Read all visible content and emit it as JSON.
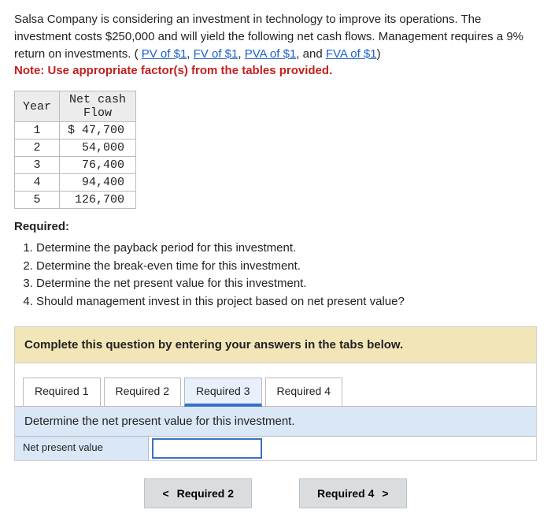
{
  "intro": {
    "line1": "Salsa Company is considering an investment in technology to improve its operations. The investment costs $250,000 and will yield the following net cash flows. Management requires a 9% return on investments. (",
    "link1": "PV of $1",
    "sep": ", ",
    "link2": "FV of $1",
    "link3": "PVA of $1",
    "and": ", and ",
    "link4": "FVA of $1",
    "close": ")",
    "note": "Note: Use appropriate factor(s) from the tables provided."
  },
  "table": {
    "head_year": "Year",
    "head_flow": "Net cash\nFlow",
    "rows": [
      {
        "year": "1",
        "flow": "$ 47,700"
      },
      {
        "year": "2",
        "flow": "54,000"
      },
      {
        "year": "3",
        "flow": "76,400"
      },
      {
        "year": "4",
        "flow": "94,400"
      },
      {
        "year": "5",
        "flow": "126,700"
      }
    ]
  },
  "required_heading": "Required:",
  "requirements": [
    "Determine the payback period for this investment.",
    "Determine the break-even time for this investment.",
    "Determine the net present value for this investment.",
    "Should management invest in this project based on net present value?"
  ],
  "complete_text": "Complete this question by entering your answers in the tabs below.",
  "tabs": [
    "Required 1",
    "Required 2",
    "Required 3",
    "Required 4"
  ],
  "active_tab_index": 2,
  "prompt": "Determine the net present value for this investment.",
  "answer_label": "Net present value",
  "answer_value": "",
  "nav_prev": "Required 2",
  "nav_next": "Required 4"
}
